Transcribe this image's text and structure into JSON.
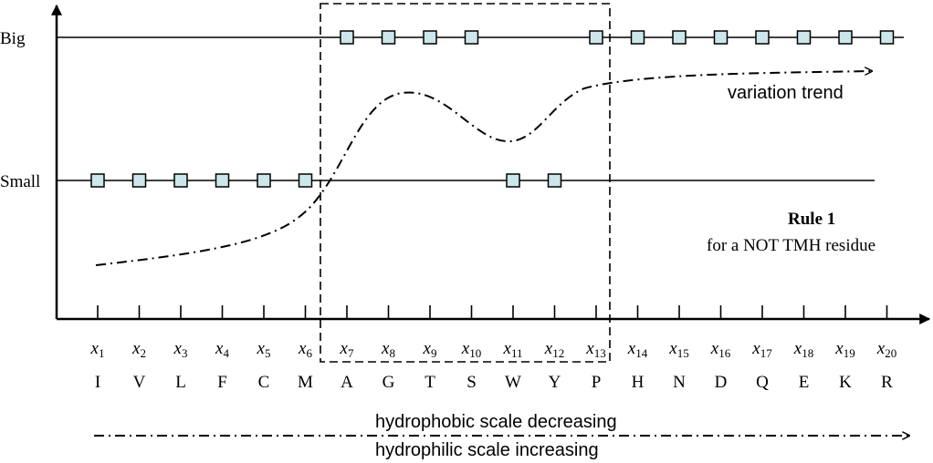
{
  "levels": {
    "big": "Big",
    "small": "Small"
  },
  "trend_label": "variation trend",
  "rule": {
    "title": "Rule 1",
    "subtitle": "for  a NOT TMH residue"
  },
  "scale_labels": {
    "top": "hydrophobic scale decreasing",
    "bottom": "hydrophilic scale increasing"
  },
  "positions": [
    {
      "base": "x",
      "sub": "1",
      "residue": "I",
      "level": "small"
    },
    {
      "base": "x",
      "sub": "2",
      "residue": "V",
      "level": "small"
    },
    {
      "base": "x",
      "sub": "3",
      "residue": "L",
      "level": "small"
    },
    {
      "base": "x",
      "sub": "4",
      "residue": "F",
      "level": "small"
    },
    {
      "base": "x",
      "sub": "5",
      "residue": "C",
      "level": "small"
    },
    {
      "base": "x",
      "sub": "6",
      "residue": "M",
      "level": "small"
    },
    {
      "base": "x",
      "sub": "7",
      "residue": "A",
      "level": "big"
    },
    {
      "base": "x",
      "sub": "8",
      "residue": "G",
      "level": "big"
    },
    {
      "base": "x",
      "sub": "9",
      "residue": "T",
      "level": "big"
    },
    {
      "base": "x",
      "sub": "10",
      "residue": "S",
      "level": "big"
    },
    {
      "base": "x",
      "sub": "11",
      "residue": "W",
      "level": "small"
    },
    {
      "base": "x",
      "sub": "12",
      "residue": "Y",
      "level": "small"
    },
    {
      "base": "x",
      "sub": "13",
      "residue": "P",
      "level": "big"
    },
    {
      "base": "x",
      "sub": "14",
      "residue": "H",
      "level": "big"
    },
    {
      "base": "x",
      "sub": "15",
      "residue": "N",
      "level": "big"
    },
    {
      "base": "x",
      "sub": "16",
      "residue": "D",
      "level": "big"
    },
    {
      "base": "x",
      "sub": "17",
      "residue": "Q",
      "level": "big"
    },
    {
      "base": "x",
      "sub": "18",
      "residue": "E",
      "level": "big"
    },
    {
      "base": "x",
      "sub": "19",
      "residue": "K",
      "level": "big"
    },
    {
      "base": "x",
      "sub": "20",
      "residue": "R",
      "level": "big"
    }
  ],
  "highlight_range": {
    "from": "x7",
    "to": "x13"
  },
  "colors": {
    "marker_fill": "#cce6ea",
    "ink": "#000000"
  }
}
